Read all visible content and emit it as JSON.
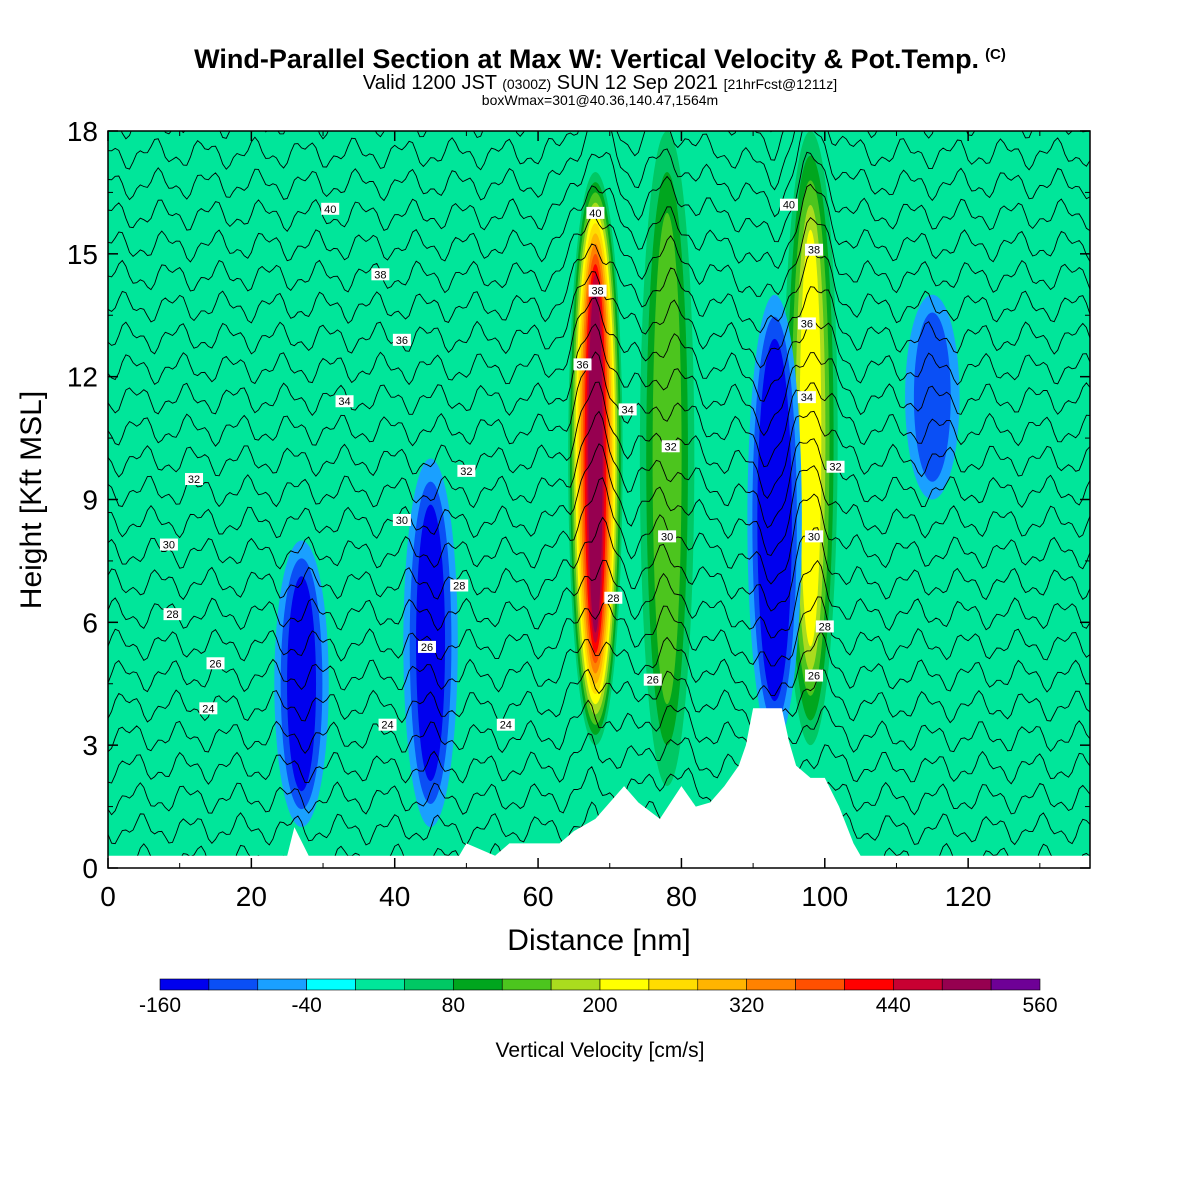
{
  "header": {
    "title": "Wind-Parallel Section at Max W: Vertical Velocity & Pot.Temp.",
    "title_tag": "(C)",
    "valid_prefix": "Valid 1200 JST",
    "valid_utc": "(0300Z)",
    "valid_date": "SUN 12 Sep 2021",
    "forecast": "[21hrFcst@1211z]",
    "box_info": "boxWmax=301@40.36,140.47,1564m"
  },
  "chart_data": {
    "type": "heatmap",
    "xlabel": "Distance [nm]",
    "ylabel": "Height [Kft MSL]",
    "xlim": [
      0,
      137
    ],
    "ylim": [
      0,
      18
    ],
    "x_ticks": [
      0,
      20,
      40,
      60,
      80,
      100,
      120
    ],
    "y_ticks": [
      0,
      3,
      6,
      9,
      12,
      15,
      18
    ],
    "grid": false,
    "colorbar": {
      "title": "Vertical Velocity [cm/s]",
      "labels": [
        "-160",
        "-40",
        "80",
        "200",
        "320",
        "440",
        "560"
      ],
      "levels": [
        -160,
        -120,
        -80,
        -40,
        0,
        40,
        80,
        120,
        160,
        200,
        240,
        280,
        320,
        360,
        400,
        440,
        480,
        520,
        560
      ],
      "colors": [
        "#0000ee",
        "#0a4ff5",
        "#1aa0ff",
        "#00ffff",
        "#00e69a",
        "#00c864",
        "#00a61e",
        "#4cc51e",
        "#aadc1e",
        "#ffff00",
        "#ffdc00",
        "#ffb400",
        "#ff8200",
        "#ff5000",
        "#ff0000",
        "#c80032",
        "#960050",
        "#6e0096"
      ]
    },
    "theta_contours_K": [
      24,
      26,
      28,
      30,
      32,
      34,
      36,
      38,
      40
    ],
    "contour_labels": [
      {
        "text": "40",
        "x": 31,
        "y": 16.1
      },
      {
        "text": "38",
        "x": 38,
        "y": 14.5
      },
      {
        "text": "36",
        "x": 41,
        "y": 12.9
      },
      {
        "text": "34",
        "x": 33,
        "y": 11.4
      },
      {
        "text": "32",
        "x": 12,
        "y": 9.5
      },
      {
        "text": "32",
        "x": 50,
        "y": 9.7
      },
      {
        "text": "30",
        "x": 8.5,
        "y": 7.9
      },
      {
        "text": "30",
        "x": 41,
        "y": 8.5
      },
      {
        "text": "28",
        "x": 9,
        "y": 6.2
      },
      {
        "text": "28",
        "x": 49,
        "y": 6.9
      },
      {
        "text": "26",
        "x": 15,
        "y": 5.0
      },
      {
        "text": "26",
        "x": 44.5,
        "y": 5.4
      },
      {
        "text": "24",
        "x": 14,
        "y": 3.9
      },
      {
        "text": "24",
        "x": 39,
        "y": 3.5
      },
      {
        "text": "24",
        "x": 55.5,
        "y": 3.5
      },
      {
        "text": "40",
        "x": 68,
        "y": 16.0
      },
      {
        "text": "38",
        "x": 68.3,
        "y": 14.1
      },
      {
        "text": "36",
        "x": 66.2,
        "y": 12.3
      },
      {
        "text": "34",
        "x": 72.5,
        "y": 11.2
      },
      {
        "text": "32",
        "x": 78.5,
        "y": 10.3
      },
      {
        "text": "30",
        "x": 78,
        "y": 8.1
      },
      {
        "text": "28",
        "x": 70.5,
        "y": 6.6
      },
      {
        "text": "26",
        "x": 76,
        "y": 4.6
      },
      {
        "text": "40",
        "x": 95,
        "y": 16.2
      },
      {
        "text": "38",
        "x": 98.5,
        "y": 15.1
      },
      {
        "text": "36",
        "x": 97.5,
        "y": 13.3
      },
      {
        "text": "34",
        "x": 97.5,
        "y": 11.5
      },
      {
        "text": "32",
        "x": 101.5,
        "y": 9.8
      },
      {
        "text": "30",
        "x": 98.5,
        "y": 8.1
      },
      {
        "text": "28",
        "x": 100,
        "y": 5.9
      },
      {
        "text": "26",
        "x": 98.5,
        "y": 4.7
      }
    ],
    "vertical_velocity_bands": [
      {
        "x": 68,
        "value": 480,
        "zmin": 3,
        "zmax": 17
      },
      {
        "x": 98,
        "value": 200,
        "zmin": 3,
        "zmax": 18
      },
      {
        "x": 78,
        "value": 120,
        "zmin": 2,
        "zmax": 18
      },
      {
        "x": 93,
        "value": -160,
        "zmin": 3,
        "zmax": 14
      },
      {
        "x": 27,
        "value": -120,
        "zmin": 1,
        "zmax": 8
      },
      {
        "x": 45,
        "value": -120,
        "zmin": 1,
        "zmax": 10
      },
      {
        "x": 115,
        "value": -80,
        "zmin": 9,
        "zmax": 14
      }
    ],
    "terrain_kft": [
      [
        0,
        0.3
      ],
      [
        25,
        0.3
      ],
      [
        26,
        1.0
      ],
      [
        28,
        0.3
      ],
      [
        49,
        0.3
      ],
      [
        50,
        0.6
      ],
      [
        54,
        0.3
      ],
      [
        56,
        0.6
      ],
      [
        63,
        0.6
      ],
      [
        65,
        0.9
      ],
      [
        68,
        1.2
      ],
      [
        72,
        2.0
      ],
      [
        74,
        1.6
      ],
      [
        77,
        1.2
      ],
      [
        80,
        2.0
      ],
      [
        82,
        1.5
      ],
      [
        84,
        1.6
      ],
      [
        86,
        2.0
      ],
      [
        88,
        2.5
      ],
      [
        89,
        3.0
      ],
      [
        90,
        3.9
      ],
      [
        94,
        3.9
      ],
      [
        95,
        3.1
      ],
      [
        96,
        2.5
      ],
      [
        98,
        2.2
      ],
      [
        100,
        2.2
      ],
      [
        102,
        1.5
      ],
      [
        104,
        0.6
      ],
      [
        105,
        0.3
      ],
      [
        137,
        0.3
      ]
    ]
  }
}
